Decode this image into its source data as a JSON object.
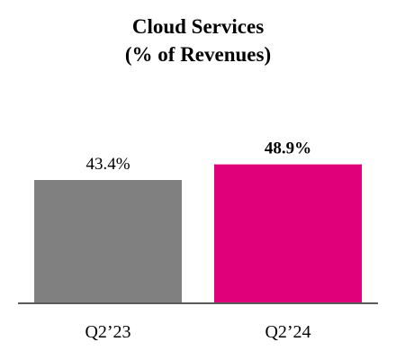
{
  "chart_data": {
    "type": "bar",
    "title_lines": [
      "Cloud Services",
      "(% of Revenues)"
    ],
    "categories": [
      "Q2’23",
      "Q2’24"
    ],
    "values": [
      43.4,
      48.9
    ],
    "data_labels": [
      "43.4%",
      "48.9%"
    ],
    "highlight_index": 1,
    "colors": [
      "#808080",
      "#E0007A"
    ],
    "axis_color": "#5a5a5a",
    "xlabel": "",
    "ylabel": "",
    "grid": false,
    "legend": "none"
  }
}
